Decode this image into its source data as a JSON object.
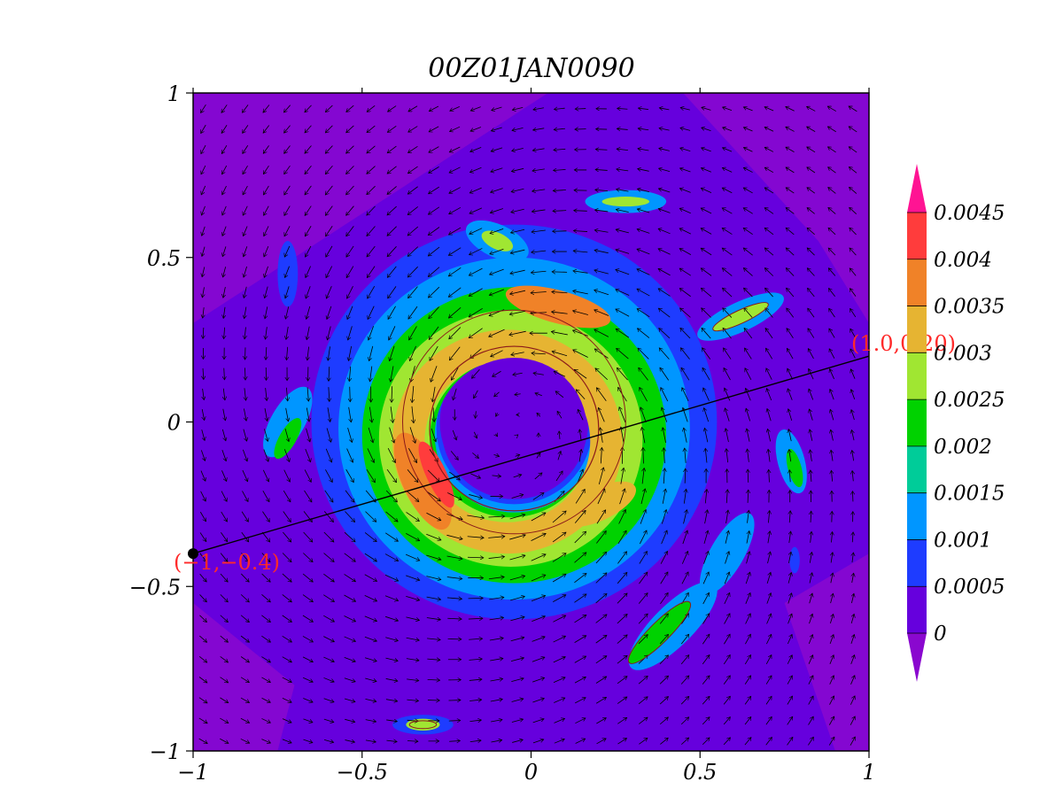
{
  "chart_data": {
    "type": "heatmap",
    "title": "00Z01JAN0090",
    "xlabel": "",
    "ylabel": "",
    "xlim": [
      -1,
      1
    ],
    "ylim": [
      -1,
      1
    ],
    "x_ticks": [
      "−1",
      "−0.5",
      "0",
      "0.5",
      "1"
    ],
    "x_tick_values": [
      -1,
      -0.5,
      0,
      0.5,
      1
    ],
    "y_ticks": [
      "−1",
      "−0.5",
      "0",
      "0.5",
      "1"
    ],
    "y_tick_values": [
      -1,
      -0.5,
      0,
      0.5,
      1
    ],
    "field": "cyclonic vortex: mixing-ratio rings and spiral rainbands with counter-clockwise wind vectors",
    "colorbar": {
      "labels": [
        "0",
        "0.0005",
        "0.001",
        "0.0015",
        "0.002",
        "0.0025",
        "0.003",
        "0.0035",
        "0.004",
        "0.0045"
      ],
      "levels": [
        0,
        0.0005,
        0.001,
        0.0015,
        0.002,
        0.0025,
        0.003,
        0.0035,
        0.004,
        0.0045
      ],
      "colors": [
        "#8a08cf",
        "#6600dd",
        "#1e3cff",
        "#0096ff",
        "#00cc99",
        "#00d200",
        "#a0e632",
        "#e6b432",
        "#f08228",
        "#ff3c3c",
        "#ff1493"
      ],
      "extend": "both"
    },
    "cross_section": {
      "start": [
        -1,
        -0.4
      ],
      "end": [
        1.0,
        0.2
      ],
      "start_label": "(−1,−0.4)",
      "end_label": "(1.0,0.20)",
      "label_color": "#ff2a2a"
    },
    "vortex_center": [
      -0.05,
      -0.02
    ]
  }
}
